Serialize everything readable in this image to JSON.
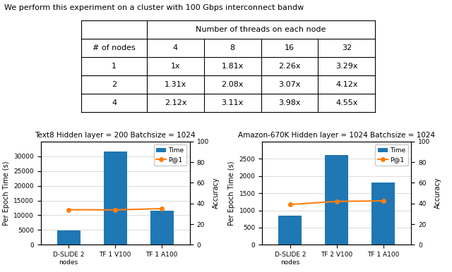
{
  "chart_data": [
    {
      "type": "table",
      "title": "We perform this experiment on a cluster with 100 Gbps interconnect bandw",
      "column_group": "Number of threads on each node",
      "columns": [
        "# of nodes",
        "4",
        "8",
        "16",
        "32"
      ],
      "rows": [
        [
          "1",
          "1x",
          "1.81x",
          "2.26x",
          "3.29x"
        ],
        [
          "2",
          "1.31x",
          "2.08x",
          "3.07x",
          "4.12x"
        ],
        [
          "4",
          "2.12x",
          "3.11x",
          "3.98x",
          "4.55x"
        ]
      ]
    },
    {
      "type": "bar",
      "title": "Text8 Hidden layer = 200 Batchsize = 1024",
      "categories": [
        "D-SLIDE 2 nodes",
        "TF 1 V100",
        "TF 1 A100"
      ],
      "series": [
        {
          "name": "Time",
          "type": "bar",
          "values": [
            4800,
            31500,
            11500
          ]
        },
        {
          "name": "P@1",
          "type": "line",
          "axis": "y2",
          "marker": "o",
          "values": [
            34.0,
            33.8,
            35.0
          ]
        }
      ],
      "ylabel": "Per Epoch Time (s)",
      "y2label": "Accuracy",
      "ylim": [
        0,
        35000
      ],
      "yticks": [
        0,
        5000,
        10000,
        15000,
        20000,
        25000,
        30000
      ],
      "y2lim": [
        0,
        100
      ],
      "y2ticks": [
        0,
        20,
        40,
        60,
        80,
        100
      ],
      "grid": true,
      "legend": "upper right"
    },
    {
      "type": "bar",
      "title": "Amazon-670K Hidden layer = 1024 Batchsize = 1024",
      "categories": [
        "D-SLIDE 2 nodes",
        "TF 2 V100",
        "TF 1 A100"
      ],
      "series": [
        {
          "name": "Time",
          "type": "bar",
          "values": [
            850,
            2600,
            1800
          ]
        },
        {
          "name": "P@1",
          "type": "line",
          "axis": "y2",
          "marker": "o",
          "values": [
            39.0,
            42.0,
            42.5
          ]
        }
      ],
      "ylabel": "Per Epoch Time (s)",
      "y2label": "Accuracy",
      "ylim": [
        0,
        3000
      ],
      "yticks": [
        0,
        500,
        1000,
        1500,
        2000,
        2500
      ],
      "y2lim": [
        0,
        100
      ],
      "y2ticks": [
        0,
        20,
        40,
        60,
        80,
        100
      ],
      "grid": true,
      "legend": "upper right"
    }
  ]
}
